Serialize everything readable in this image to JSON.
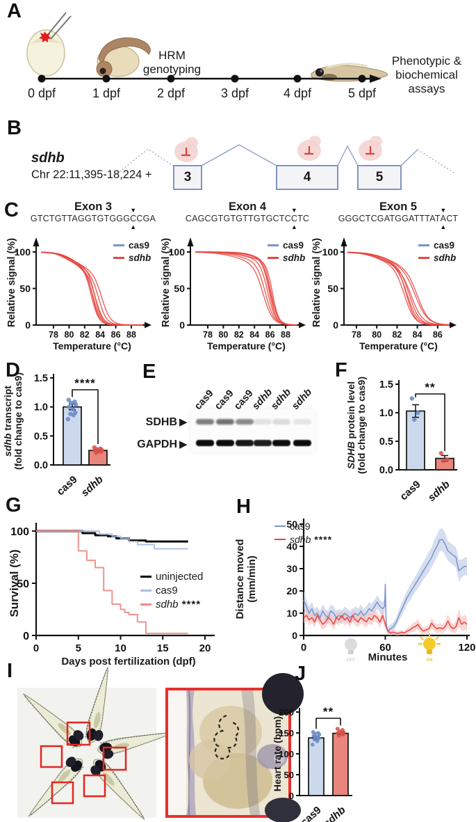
{
  "colors": {
    "blue": "#7b92c7",
    "red": "#e8453f",
    "blue_light": "#a9bede",
    "red_light": "#ef8d85",
    "blue_band": "#b3c3e2",
    "red_band": "#f5b8b3",
    "bar_blue": "#ccd9ec",
    "bar_red": "#e8857c",
    "dot_blue": "#6d8dc9",
    "dot_red": "#d9534b",
    "black": "#000000"
  },
  "panels": {
    "A": {
      "letter": "A",
      "hrm_line1": "HRM",
      "hrm_line2": "genotyping",
      "assay_line1": "Phenotypic &",
      "assay_line2": "biochemical assays",
      "timeline": [
        "0 dpf",
        "1 dpf",
        "2 dpf",
        "3 dpf",
        "4 dpf",
        "5 dpf"
      ]
    },
    "B": {
      "letter": "B",
      "gene": "sdhb",
      "locus": "Chr 22:11,395-18,224 +",
      "exons": [
        "3",
        "4",
        "5"
      ]
    },
    "C": {
      "letter": "C",
      "ylabel": "Relative signal (%)",
      "legend_cas9": "cas9",
      "legend_sdhb": "sdhb",
      "subpanels": [
        {
          "title": "Exon 3",
          "seq_before": "GTCTGTTAGGTGTGGG",
          "seq_cut": "C",
          "seq_after": "CGA"
        },
        {
          "title": "Exon 4",
          "seq_before": "CAGCGTGTGTTGTGCTC",
          "seq_cut": "C",
          "seq_after": "TC"
        },
        {
          "title": "Exon 5",
          "seq_before": "GGGCTCGATGGATTTAT",
          "seq_cut": "A",
          "seq_after": "CT"
        }
      ]
    },
    "D": {
      "letter": "D",
      "ylabel_gene": "sdhb",
      "ylabel_rest": " transcript",
      "ylabel_line2": "(fold change to cas9)"
    },
    "E": {
      "letter": "E",
      "lanes": [
        "cas9",
        "cas9",
        "cas9",
        "sdhb",
        "sdhb",
        "sdhb"
      ],
      "row1": "SDHB",
      "row2": "GAPDH",
      "sdhb_bands": [
        0.5,
        0.55,
        0.45,
        0.1,
        0.13,
        0.09
      ],
      "gapdh_bands": [
        0.95,
        0.95,
        0.9,
        0.88,
        0.95,
        0.95
      ]
    },
    "F": {
      "letter": "F",
      "ylabel_gene": "SDHB",
      "ylabel_rest": " protein level",
      "ylabel_line2": "(fold change to cas9)"
    },
    "G": {
      "letter": "G",
      "ylabel": "Survival (%)",
      "xlabel": "Days post fertilization (dpf)",
      "legend": [
        {
          "label": "uninjected",
          "sig": ""
        },
        {
          "label": "cas9",
          "sig": ""
        },
        {
          "label": "sdhb",
          "sig": " ****"
        }
      ]
    },
    "H": {
      "letter": "H",
      "ylabel_line1": "Distance moved",
      "ylabel_line2": "(mm/min)",
      "xlabel": "Minutes",
      "legend": [
        {
          "label": "cas9",
          "sig": ""
        },
        {
          "label": "sdhb",
          "sig": " ****"
        }
      ],
      "light_off": "OFF",
      "light_on": "ON"
    },
    "I": {
      "letter": "I"
    },
    "J": {
      "letter": "J",
      "ylabel": "Heart rate (bpm)"
    }
  },
  "chart_data": [
    {
      "id": "melt_exon3",
      "type": "melt",
      "title": "Exon 3",
      "xlabel": "Temperature (°C)",
      "xlim": [
        76.4,
        89.6
      ],
      "xticks": [
        78,
        80,
        82,
        84,
        86,
        88
      ],
      "yticks": [
        0,
        50,
        100
      ],
      "cas9": [
        {
          "tm": 85.2,
          "w": 0.45
        },
        {
          "tm": 85.4,
          "w": 0.38
        },
        {
          "tm": 85.55,
          "w": 0.42
        }
      ],
      "sdhb": [
        {
          "f": 0.25,
          "tm1": 80.3,
          "w1": 0.9,
          "tm": 83.1,
          "w": 0.5
        },
        {
          "f": 0.3,
          "tm1": 80.8,
          "w1": 1.0,
          "tm": 83.4,
          "w": 0.5
        },
        {
          "f": 0.2,
          "tm1": 79.8,
          "w1": 0.8,
          "tm": 83.0,
          "w": 0.45
        },
        {
          "f": 0.32,
          "tm1": 81.2,
          "w1": 1.1,
          "tm": 83.8,
          "w": 0.5
        },
        {
          "f": 0.22,
          "tm1": 80.5,
          "w1": 0.9,
          "tm": 83.3,
          "w": 0.45
        },
        {
          "f": 0.15,
          "tm1": 79.3,
          "w1": 0.7,
          "tm": 82.8,
          "w": 0.5
        },
        {
          "f": 0.28,
          "tm1": 81.0,
          "w1": 1.2,
          "tm": 84.2,
          "w": 0.55
        }
      ]
    },
    {
      "id": "melt_exon4",
      "type": "melt",
      "title": "Exon 4",
      "xlabel": "Temperature (°C)",
      "xlim": [
        76.4,
        89.6
      ],
      "xticks": [
        78,
        80,
        82,
        84,
        86,
        88
      ],
      "yticks": [
        0,
        50,
        100
      ],
      "cas9": [
        {
          "tm": 86.6,
          "w": 0.4
        },
        {
          "tm": 86.8,
          "w": 0.4
        },
        {
          "tm": 86.95,
          "w": 0.42
        }
      ],
      "sdhb": [
        {
          "f": 0.12,
          "tm1": 83.0,
          "w1": 1.3,
          "tm": 85.7,
          "w": 0.5
        },
        {
          "f": 0.1,
          "tm1": 83.5,
          "w1": 1.2,
          "tm": 85.9,
          "w": 0.45
        },
        {
          "f": 0.15,
          "tm1": 82.6,
          "w1": 1.4,
          "tm": 85.4,
          "w": 0.55
        },
        {
          "f": 0.1,
          "tm1": 84.0,
          "w1": 1.1,
          "tm": 86.1,
          "w": 0.45
        },
        {
          "f": 0.13,
          "tm1": 83.2,
          "w1": 1.3,
          "tm": 86.3,
          "w": 0.4
        },
        {
          "f": 0.18,
          "tm1": 82.2,
          "w1": 1.5,
          "tm": 85.1,
          "w": 0.6
        },
        {
          "f": 0.1,
          "tm1": 84.2,
          "w1": 1.0,
          "tm": 86.0,
          "w": 0.5
        }
      ]
    },
    {
      "id": "melt_exon5",
      "type": "melt",
      "title": "Exon 5",
      "xlabel": "Temperature (°C)",
      "xlim": [
        77.1,
        87.2
      ],
      "xticks": [
        78,
        80,
        82,
        84,
        86
      ],
      "yticks": [
        0,
        50,
        100
      ],
      "cas9": [
        {
          "tm": 83.3,
          "w": 0.33
        },
        {
          "tm": 83.45,
          "w": 0.3
        },
        {
          "tm": 83.55,
          "w": 0.35
        }
      ],
      "sdhb": [
        {
          "f": 0.2,
          "tm1": 80.6,
          "w1": 1.0,
          "tm": 83.0,
          "w": 0.5
        },
        {
          "f": 0.25,
          "tm1": 81.0,
          "w1": 1.1,
          "tm": 83.4,
          "w": 0.55
        },
        {
          "f": 0.18,
          "tm1": 80.2,
          "w1": 0.9,
          "tm": 82.7,
          "w": 0.5
        },
        {
          "f": 0.22,
          "tm1": 81.3,
          "w1": 1.0,
          "tm": 83.8,
          "w": 0.6
        },
        {
          "f": 0.2,
          "tm1": 80.9,
          "w1": 1.0,
          "tm": 83.2,
          "w": 0.5
        },
        {
          "f": 0.15,
          "tm1": 80.0,
          "w1": 0.8,
          "tm": 82.9,
          "w": 0.45
        },
        {
          "f": 0.24,
          "tm1": 81.5,
          "w1": 1.1,
          "tm": 84.0,
          "w": 0.55
        }
      ]
    },
    {
      "id": "bar_transcript",
      "type": "bar",
      "categories": [
        "cas9",
        "sdhb"
      ],
      "categories_italic": [
        false,
        true
      ],
      "values": [
        1.0,
        0.25
      ],
      "errors": [
        0.05,
        0.02
      ],
      "dots": [
        [
          1.12,
          1.09,
          1.07,
          1.04,
          1.0,
          0.96,
          0.9,
          0.88,
          0.86,
          0.79
        ],
        [
          0.3,
          0.28,
          0.27,
          0.26,
          0.25,
          0.24,
          0.23,
          0.21
        ]
      ],
      "ylim": [
        0,
        1.5
      ],
      "yticks": [
        "0.0",
        "0.5",
        "1.0",
        "1.5"
      ],
      "sig": "****"
    },
    {
      "id": "bar_protein",
      "type": "bar",
      "categories": [
        "cas9",
        "sdhb"
      ],
      "categories_italic": [
        false,
        true
      ],
      "values": [
        1.03,
        0.2
      ],
      "errors": [
        0.11,
        0.05
      ],
      "dots": [
        [
          1.25,
          1.0,
          0.88
        ],
        [
          0.29,
          0.18,
          0.16
        ]
      ],
      "ylim": [
        0,
        1.5
      ],
      "yticks": [
        "0.0",
        "0.5",
        "1.0",
        "1.5"
      ],
      "sig": "**"
    },
    {
      "id": "survival",
      "type": "survival",
      "yticks": [
        0,
        50,
        100
      ],
      "xticks": [
        0,
        5,
        10,
        15,
        20
      ],
      "xlim": [
        0,
        20
      ],
      "xend": 18,
      "series": [
        {
          "name": "uninjected",
          "color": "black",
          "width": 3,
          "x": [
            5.5,
            7,
            8.5,
            9.5,
            11,
            13
          ],
          "y": [
            98,
            96,
            95,
            93,
            91,
            90
          ]
        },
        {
          "name": "cas9",
          "color": "blue_light",
          "width": 2,
          "x": [
            7.5,
            9,
            10,
            11,
            12,
            14
          ],
          "y": [
            97,
            95,
            93,
            90,
            87,
            83
          ]
        },
        {
          "name": "sdhb",
          "color": "red_light",
          "width": 2,
          "x": [
            5,
            6,
            7,
            8,
            9,
            10,
            10.5,
            11,
            12,
            13
          ],
          "y": [
            81,
            72,
            65,
            43,
            30,
            25,
            22,
            20,
            13,
            2
          ]
        }
      ]
    },
    {
      "id": "activity",
      "type": "activity",
      "ylim": [
        0,
        50
      ],
      "xlim": [
        0,
        120
      ],
      "yticks": [
        0,
        10,
        20,
        30,
        40,
        50
      ],
      "xticks": [
        0,
        60,
        120
      ],
      "series": [
        {
          "name": "cas9",
          "color": "blue",
          "band": "blue_band",
          "x": [
            0,
            2,
            4,
            6,
            8,
            10,
            12,
            14,
            16,
            18,
            20,
            22,
            24,
            26,
            28,
            30,
            32,
            34,
            36,
            38,
            40,
            42,
            44,
            46,
            48,
            50,
            52,
            54,
            56,
            58,
            59.5,
            60,
            60.5,
            61,
            62,
            64,
            66,
            68,
            70,
            73,
            76,
            79,
            82,
            85,
            88,
            91,
            94,
            96,
            98,
            100,
            102,
            104,
            106,
            108,
            110,
            112,
            114,
            116,
            118,
            120
          ],
          "y": [
            16,
            13,
            10,
            12,
            9,
            10,
            8,
            11,
            9,
            8,
            11,
            10,
            8,
            9,
            8,
            10,
            9,
            8,
            9,
            10,
            9,
            11,
            9,
            10,
            12,
            11,
            13,
            15,
            13,
            12,
            13,
            23,
            8,
            3,
            2,
            3,
            4,
            6,
            9,
            13,
            17,
            20,
            23,
            26,
            29,
            32,
            35,
            38,
            40,
            43,
            43,
            41,
            38,
            37,
            36,
            35,
            29,
            30,
            31,
            31
          ],
          "e": [
            4,
            3,
            3,
            3,
            3,
            3,
            3,
            3,
            3,
            3,
            3,
            3,
            3,
            3,
            3,
            3,
            3,
            3,
            3,
            3,
            3,
            3,
            3,
            3,
            3,
            3,
            3,
            3,
            3,
            3,
            3,
            4,
            3,
            2,
            2,
            2,
            2,
            2,
            2.5,
            3,
            3,
            3.5,
            3.5,
            4,
            4,
            4.5,
            4.5,
            5,
            5,
            5,
            5,
            5,
            4.5,
            4.5,
            4.5,
            4.5,
            5,
            4,
            4,
            4
          ]
        },
        {
          "name": "sdhb",
          "color": "red",
          "band": "red_band",
          "x": [
            0,
            2,
            4,
            6,
            8,
            10,
            12,
            14,
            16,
            18,
            20,
            22,
            24,
            26,
            28,
            30,
            32,
            34,
            36,
            38,
            40,
            42,
            44,
            46,
            48,
            50,
            52,
            54,
            56,
            58,
            60,
            62,
            64,
            66,
            68,
            70,
            72,
            74,
            76,
            78,
            80,
            82,
            84,
            86,
            88,
            90,
            92,
            94,
            96,
            98,
            100,
            102,
            104,
            106,
            108,
            110,
            112,
            114,
            116,
            118,
            120
          ],
          "y": [
            8,
            9,
            7,
            8,
            6,
            9,
            7,
            5,
            6,
            8,
            7,
            5,
            8,
            7,
            9,
            7,
            8,
            6,
            9,
            7,
            6,
            8,
            7,
            6,
            8,
            7,
            9,
            8,
            6,
            9,
            5,
            2,
            1,
            1.5,
            1,
            1,
            1.5,
            1,
            2,
            2.5,
            3.5,
            4,
            5,
            3,
            2,
            2.5,
            3,
            5.5,
            4,
            3,
            3.5,
            3,
            4,
            6.5,
            4,
            3,
            4,
            8,
            5,
            6,
            5
          ],
          "e": [
            2.5,
            2.5,
            2.5,
            2.5,
            2.5,
            2.5,
            2.5,
            2.5,
            2.5,
            2.5,
            2.5,
            2.5,
            2.5,
            2.5,
            2.5,
            2.5,
            2.5,
            2.5,
            2.5,
            2.5,
            2.5,
            2.5,
            2.5,
            2.5,
            2.5,
            2.5,
            2.5,
            2.5,
            2.5,
            2.5,
            2,
            1.5,
            1,
            1,
            1,
            1,
            1,
            1,
            1.5,
            1.5,
            2,
            2,
            2.5,
            2,
            1.5,
            1.5,
            2,
            2.5,
            2,
            2,
            2,
            2,
            2,
            3,
            2.5,
            2,
            2.5,
            4,
            3,
            3.5,
            3
          ]
        }
      ]
    },
    {
      "id": "bar_heartrate",
      "type": "bar",
      "categories": [
        "cas9",
        "sdhb"
      ],
      "categories_italic": [
        false,
        true
      ],
      "values": [
        138,
        149
      ],
      "errors": [
        4,
        3
      ],
      "dots": [
        [
          152,
          150,
          148,
          146,
          143,
          140,
          137,
          134,
          130,
          122
        ],
        [
          160,
          157,
          154,
          152,
          150,
          148,
          146,
          143
        ]
      ],
      "ylim": [
        0,
        200
      ],
      "yticks": [
        "0",
        "50",
        "100",
        "150",
        "200"
      ],
      "sig": "**"
    }
  ]
}
